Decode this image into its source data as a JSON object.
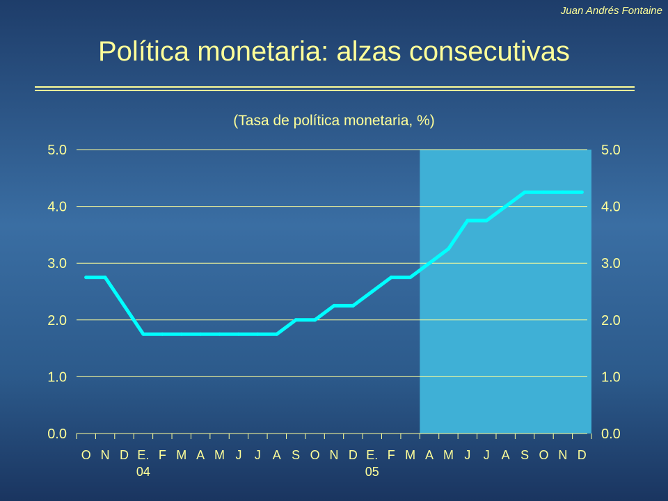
{
  "header": {
    "author": "Juan Andrés Fontaine",
    "title": "Política monetaria: alzas consecutivas"
  },
  "colors": {
    "text": "#ffff99",
    "line": "#00ffff",
    "highlight": "#3fb0d6",
    "grid": "#ffff99"
  },
  "chart_data": {
    "type": "line",
    "title": "(Tasa de política monetaria, %)",
    "xlabel": "",
    "ylabel": "",
    "ylim": [
      0,
      5
    ],
    "yticks": [
      "0.0",
      "1.0",
      "2.0",
      "3.0",
      "4.0",
      "5.0"
    ],
    "grid": true,
    "dual_y_axis": true,
    "categories": [
      "O",
      "N",
      "D",
      "E.",
      "F",
      "M",
      "A",
      "M",
      "J",
      "J",
      "A",
      "S",
      "O",
      "N",
      "D",
      "E.",
      "F",
      "M",
      "A",
      "M",
      "J",
      "J",
      "A",
      "S",
      "O",
      "N",
      "D"
    ],
    "year_labels": [
      {
        "category_index": 3,
        "text": "04"
      },
      {
        "category_index": 15,
        "text": "05"
      }
    ],
    "highlight_range": {
      "from_index": 17.5,
      "to_index": 26.5
    },
    "series": [
      {
        "values": [
          2.75,
          2.75,
          2.25,
          1.75,
          1.75,
          1.75,
          1.75,
          1.75,
          1.75,
          1.75,
          1.75,
          2.0,
          2.0,
          2.25,
          2.25,
          2.5,
          2.75,
          2.75,
          3.0,
          3.25,
          3.75,
          3.75,
          4.0,
          4.25,
          4.25,
          4.25,
          4.25
        ]
      }
    ]
  }
}
